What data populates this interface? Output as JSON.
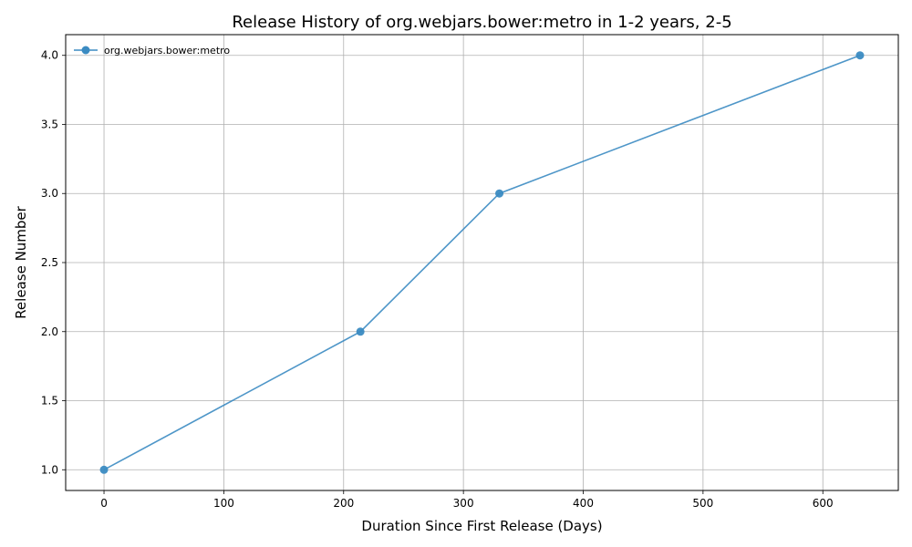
{
  "chart_data": {
    "type": "line",
    "title": "Release History of org.webjars.bower:metro in 1-2 years, 2-5",
    "xlabel": "Duration Since First Release (Days)",
    "ylabel": "Release Number",
    "xlim": [
      -32,
      663
    ],
    "ylim": [
      0.85,
      4.15
    ],
    "xticks": [
      0,
      100,
      200,
      300,
      400,
      500,
      600
    ],
    "xtick_labels": [
      "0",
      "100",
      "200",
      "300",
      "400",
      "500",
      "600"
    ],
    "yticks": [
      1.0,
      1.5,
      2.0,
      2.5,
      3.0,
      3.5,
      4.0
    ],
    "ytick_labels": [
      "1.0",
      "1.5",
      "2.0",
      "2.5",
      "3.0",
      "3.5",
      "4.0"
    ],
    "grid": true,
    "legend_position": "top-left",
    "series": [
      {
        "name": "org.webjars.bower:metro",
        "color": "#3b8bc2",
        "marker": "circle",
        "x": [
          0,
          214,
          330,
          631
        ],
        "y": [
          1,
          2,
          3,
          4
        ]
      }
    ]
  }
}
